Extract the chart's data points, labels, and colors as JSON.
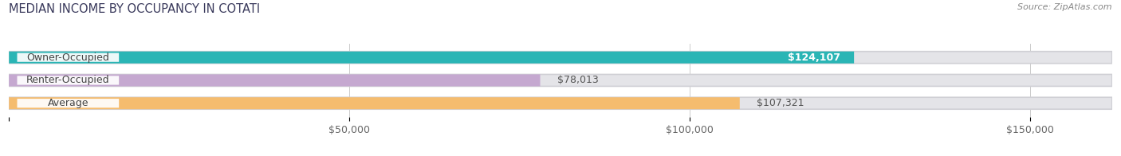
{
  "title": "MEDIAN INCOME BY OCCUPANCY IN COTATI",
  "source": "Source: ZipAtlas.com",
  "categories": [
    "Owner-Occupied",
    "Renter-Occupied",
    "Average"
  ],
  "values": [
    124107,
    78013,
    107321
  ],
  "labels": [
    "$124,107",
    "$78,013",
    "$107,321"
  ],
  "label_inside": [
    true,
    false,
    false
  ],
  "label_color_inside": "#ffffff",
  "label_color_outside": "#555555",
  "bar_colors": [
    "#2ab5b5",
    "#c5a8d0",
    "#f5bc6e"
  ],
  "xlim": [
    0,
    162000
  ],
  "xticks": [
    0,
    50000,
    100000,
    150000
  ],
  "xticklabels": [
    "",
    "$50,000",
    "$100,000",
    "$150,000"
  ],
  "background_color": "#ffffff",
  "bar_bg_color": "#e4e4e8",
  "title_fontsize": 10.5,
  "label_fontsize": 9,
  "tick_fontsize": 9,
  "source_fontsize": 8
}
